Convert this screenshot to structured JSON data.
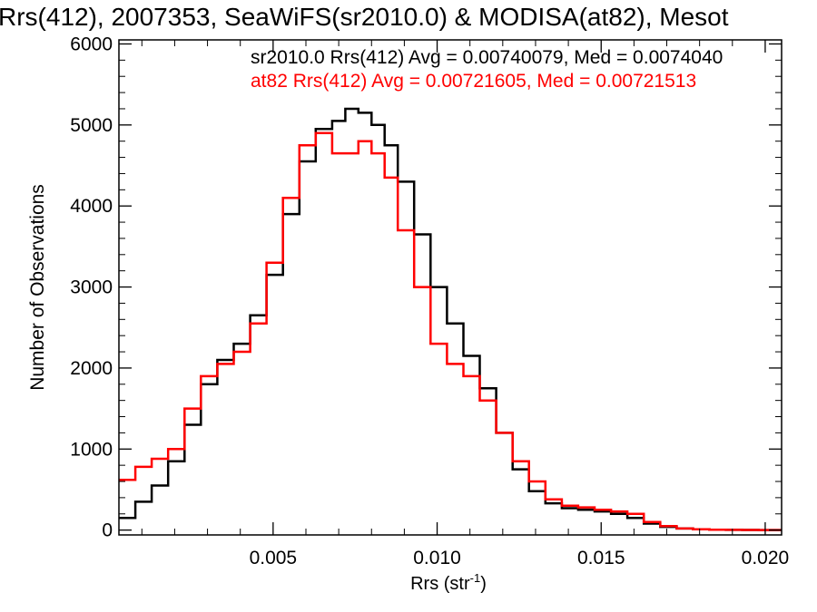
{
  "chart_data": {
    "type": "line",
    "step": true,
    "title": "Rrs(412), 2007353, SeaWiFS(sr2010.0) & MODISA(at82), Mesot",
    "xlabel": "Rrs (str",
    "xlabel_sup": "-1",
    "xlabel_end": ")",
    "ylabel": "Number of Observations",
    "xlim": [
      0.0003,
      0.0205
    ],
    "ylim": [
      -60,
      6050
    ],
    "x_ticks": [
      0.005,
      0.01,
      0.015,
      0.02
    ],
    "x_tick_labels": [
      "0.005",
      "0.010",
      "0.015",
      "0.020"
    ],
    "y_ticks": [
      0,
      1000,
      2000,
      3000,
      4000,
      5000,
      6000
    ],
    "y_tick_labels": [
      "0",
      "1000",
      "2000",
      "3000",
      "4000",
      "5000",
      "6000"
    ],
    "grid": false,
    "legend": "top-right",
    "x": [
      0.0003,
      0.0008,
      0.0013,
      0.0018,
      0.0023,
      0.0028,
      0.0033,
      0.0038,
      0.0043,
      0.0048,
      0.0053,
      0.0058,
      0.0063,
      0.0068,
      0.0072,
      0.0076,
      0.008,
      0.0084,
      0.0088,
      0.0093,
      0.0098,
      0.0103,
      0.0108,
      0.0113,
      0.0118,
      0.0123,
      0.0128,
      0.0133,
      0.0138,
      0.0143,
      0.0148,
      0.0153,
      0.0158,
      0.0163,
      0.0168,
      0.0173,
      0.0178,
      0.0183,
      0.0188,
      0.0193,
      0.0198,
      0.0205
    ],
    "series": [
      {
        "name": "sr2010.0 Rrs(412) Avg = 0.00740079, Med = 0.0074040",
        "color": "#000000",
        "values": [
          150,
          350,
          550,
          850,
          1300,
          1800,
          2100,
          2300,
          2650,
          3150,
          3900,
          4550,
          4950,
          5050,
          5200,
          5150,
          5000,
          4750,
          4300,
          3650,
          3000,
          2550,
          2150,
          1750,
          1200,
          750,
          480,
          330,
          270,
          250,
          230,
          200,
          150,
          80,
          40,
          20,
          10,
          5,
          3,
          2,
          0,
          0
        ]
      },
      {
        "name": "at82 Rrs(412) Avg = 0.00721605, Med = 0.00721513",
        "color": "#ff0000",
        "values": [
          620,
          780,
          880,
          1000,
          1500,
          1900,
          2050,
          2200,
          2550,
          3300,
          4100,
          4750,
          4900,
          4650,
          4650,
          4800,
          4650,
          4350,
          3700,
          3000,
          2300,
          2050,
          1900,
          1600,
          1200,
          850,
          600,
          380,
          300,
          280,
          250,
          230,
          200,
          100,
          50,
          20,
          10,
          5,
          3,
          2,
          0,
          0
        ]
      }
    ]
  }
}
